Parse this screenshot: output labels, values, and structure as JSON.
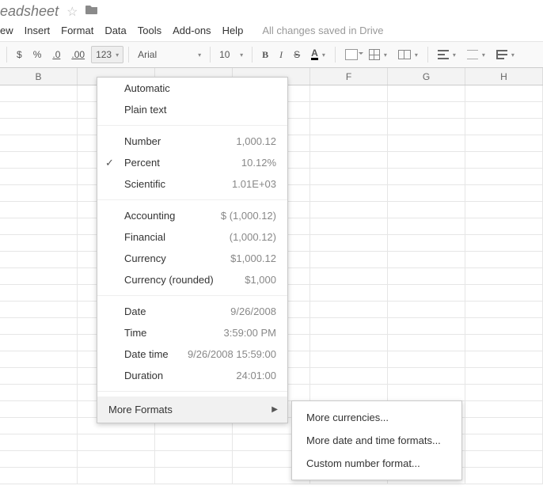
{
  "doc": {
    "title_fragment": "eadsheet"
  },
  "menus": {
    "items": [
      "ew",
      "Insert",
      "Format",
      "Data",
      "Tools",
      "Add-ons",
      "Help"
    ],
    "drive_status": "All changes saved in Drive"
  },
  "toolbar": {
    "currency": "$",
    "percent": "%",
    "dec_dec": ".0",
    "inc_dec": ".00",
    "num_format_btn": "123",
    "font": "Arial",
    "font_size": "10",
    "bold": "B",
    "italic": "I",
    "strike": "S",
    "text_color_glyph": "A"
  },
  "columns": {
    "widths": [
      100,
      100,
      100,
      100,
      100,
      100,
      100
    ],
    "labels": [
      "B",
      "",
      "",
      "",
      "F",
      "G",
      "H"
    ]
  },
  "grid": {
    "row_count": 24
  },
  "number_format_menu": {
    "groups": [
      [
        {
          "label": "Automatic",
          "example": ""
        },
        {
          "label": "Plain text",
          "example": ""
        }
      ],
      [
        {
          "label": "Number",
          "example": "1,000.12"
        },
        {
          "label": "Percent",
          "example": "10.12%",
          "checked": true
        },
        {
          "label": "Scientific",
          "example": "1.01E+03"
        }
      ],
      [
        {
          "label": "Accounting",
          "example": "$ (1,000.12)"
        },
        {
          "label": "Financial",
          "example": "(1,000.12)"
        },
        {
          "label": "Currency",
          "example": "$1,000.12"
        },
        {
          "label": "Currency (rounded)",
          "example": "$1,000"
        }
      ],
      [
        {
          "label": "Date",
          "example": "9/26/2008"
        },
        {
          "label": "Time",
          "example": "3:59:00 PM"
        },
        {
          "label": "Date time",
          "example": "9/26/2008 15:59:00"
        },
        {
          "label": "Duration",
          "example": "24:01:00"
        }
      ]
    ],
    "more_label": "More Formats",
    "submenu": [
      "More currencies...",
      "More date and time formats...",
      "Custom number format..."
    ]
  }
}
